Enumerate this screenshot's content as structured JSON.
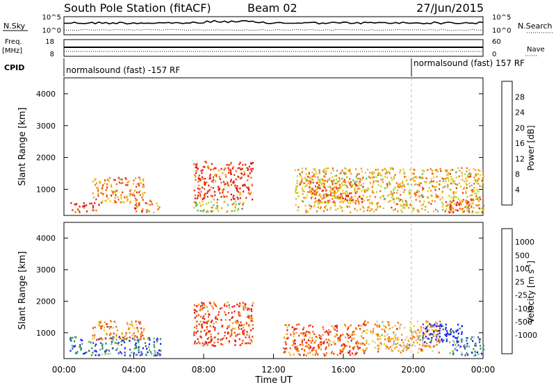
{
  "header": {
    "title": "South Pole Station (fitACF)",
    "beam": "Beam 02",
    "date": "27/Jun/2015"
  },
  "ops_panels": {
    "nsky_label": "N.Sky",
    "nsky_ticks": [
      "10^5",
      "10^0"
    ],
    "nsearch_label": "N.Search",
    "nsearch_ticks": [
      "10^5",
      "10^0"
    ],
    "freq_label": "Freq.",
    "freq_unit": "[MHz]",
    "freq_ticks": [
      "18",
      "8"
    ],
    "nave_label": "Nave",
    "nave_ticks": [
      "60",
      "0"
    ],
    "cpid_label": "CPID",
    "cpid_segments": [
      {
        "label": "normalsound (fast) -157 RF",
        "start_hour": 0
      },
      {
        "label": "normalsound (fast) 157 RF",
        "start_hour": 20
      }
    ]
  },
  "colors": {
    "power": [
      "#1a1aff",
      "#3a54b4",
      "#2e8b57",
      "#66bb6a",
      "#b5d43a",
      "#f5c518",
      "#f39c12",
      "#f26a12",
      "#e83a10",
      "#e31a1c"
    ],
    "velocity": [
      "#1a1aff",
      "#3a54b4",
      "#2e8b57",
      "#66bb6a",
      "#cccccc",
      "#f5c518",
      "#f39c12",
      "#f26a12",
      "#e83a10",
      "#e31a1c"
    ]
  },
  "chart_data": [
    {
      "type": "heatmap",
      "name": "power",
      "ylabel": "Slant Range [km]",
      "ylim": [
        180,
        4500
      ],
      "yticks": [
        "1000",
        "2000",
        "3000",
        "4000"
      ],
      "xlim_hours": [
        0,
        24
      ],
      "colorbar_label": "Power [dB]",
      "colorbar_ticks": [
        "4",
        "8",
        "12",
        "16",
        "20",
        "24",
        "28"
      ],
      "colorbar_range": [
        0,
        32
      ],
      "scatter_regions_hour_km": [
        {
          "h": [
            0.3,
            2.0
          ],
          "km": [
            300,
            600
          ],
          "level": 0.9
        },
        {
          "h": [
            1.6,
            4.6
          ],
          "km": [
            600,
            1400
          ],
          "level": 0.7
        },
        {
          "h": [
            4.0,
            5.5
          ],
          "km": [
            300,
            700
          ],
          "level": 0.75
        },
        {
          "h": [
            7.4,
            10.8
          ],
          "km": [
            700,
            1900
          ],
          "level": 0.85
        },
        {
          "h": [
            7.4,
            10.3
          ],
          "km": [
            300,
            650
          ],
          "level": 0.5
        },
        {
          "h": [
            13.2,
            24.0
          ],
          "km": [
            300,
            1700
          ],
          "level": 0.6
        },
        {
          "h": [
            14.0,
            17.2
          ],
          "km": [
            600,
            1300
          ],
          "level": 0.75
        },
        {
          "h": [
            22.0,
            23.5
          ],
          "km": [
            300,
            700
          ],
          "level": 0.85
        }
      ]
    },
    {
      "type": "heatmap",
      "name": "velocity",
      "ylabel": "Slant Range [km]",
      "ylim": [
        180,
        4500
      ],
      "yticks": [
        "1000",
        "2000",
        "3000",
        "4000"
      ],
      "xlim_hours": [
        0,
        24
      ],
      "xticks": [
        "00:00",
        "04:00",
        "08:00",
        "12:00",
        "16:00",
        "20:00",
        "00:00"
      ],
      "xlabel": "Time UT",
      "colorbar_label": "Velocity [m s",
      "colorbar_label_sup": "-1",
      "colorbar_label_end": "]",
      "colorbar_ticks": [
        "1000",
        "500",
        "100",
        "25",
        "-25",
        "-100",
        "-500",
        "-1000"
      ],
      "scatter_regions_hour_km": [
        {
          "h": [
            0.3,
            5.5
          ],
          "km": [
            300,
            900
          ],
          "level": 0.2
        },
        {
          "h": [
            1.6,
            4.6
          ],
          "km": [
            800,
            1400
          ],
          "level": 0.7
        },
        {
          "h": [
            7.4,
            10.8
          ],
          "km": [
            600,
            2000
          ],
          "level": 0.85
        },
        {
          "h": [
            12.5,
            17.2
          ],
          "km": [
            300,
            1300
          ],
          "level": 0.8
        },
        {
          "h": [
            17.0,
            21.5
          ],
          "km": [
            400,
            1400
          ],
          "level": 0.6
        },
        {
          "h": [
            20.5,
            22.8
          ],
          "km": [
            700,
            1300
          ],
          "level": 0.05
        },
        {
          "h": [
            22.0,
            24.0
          ],
          "km": [
            300,
            900
          ],
          "level": 0.2
        }
      ]
    }
  ]
}
